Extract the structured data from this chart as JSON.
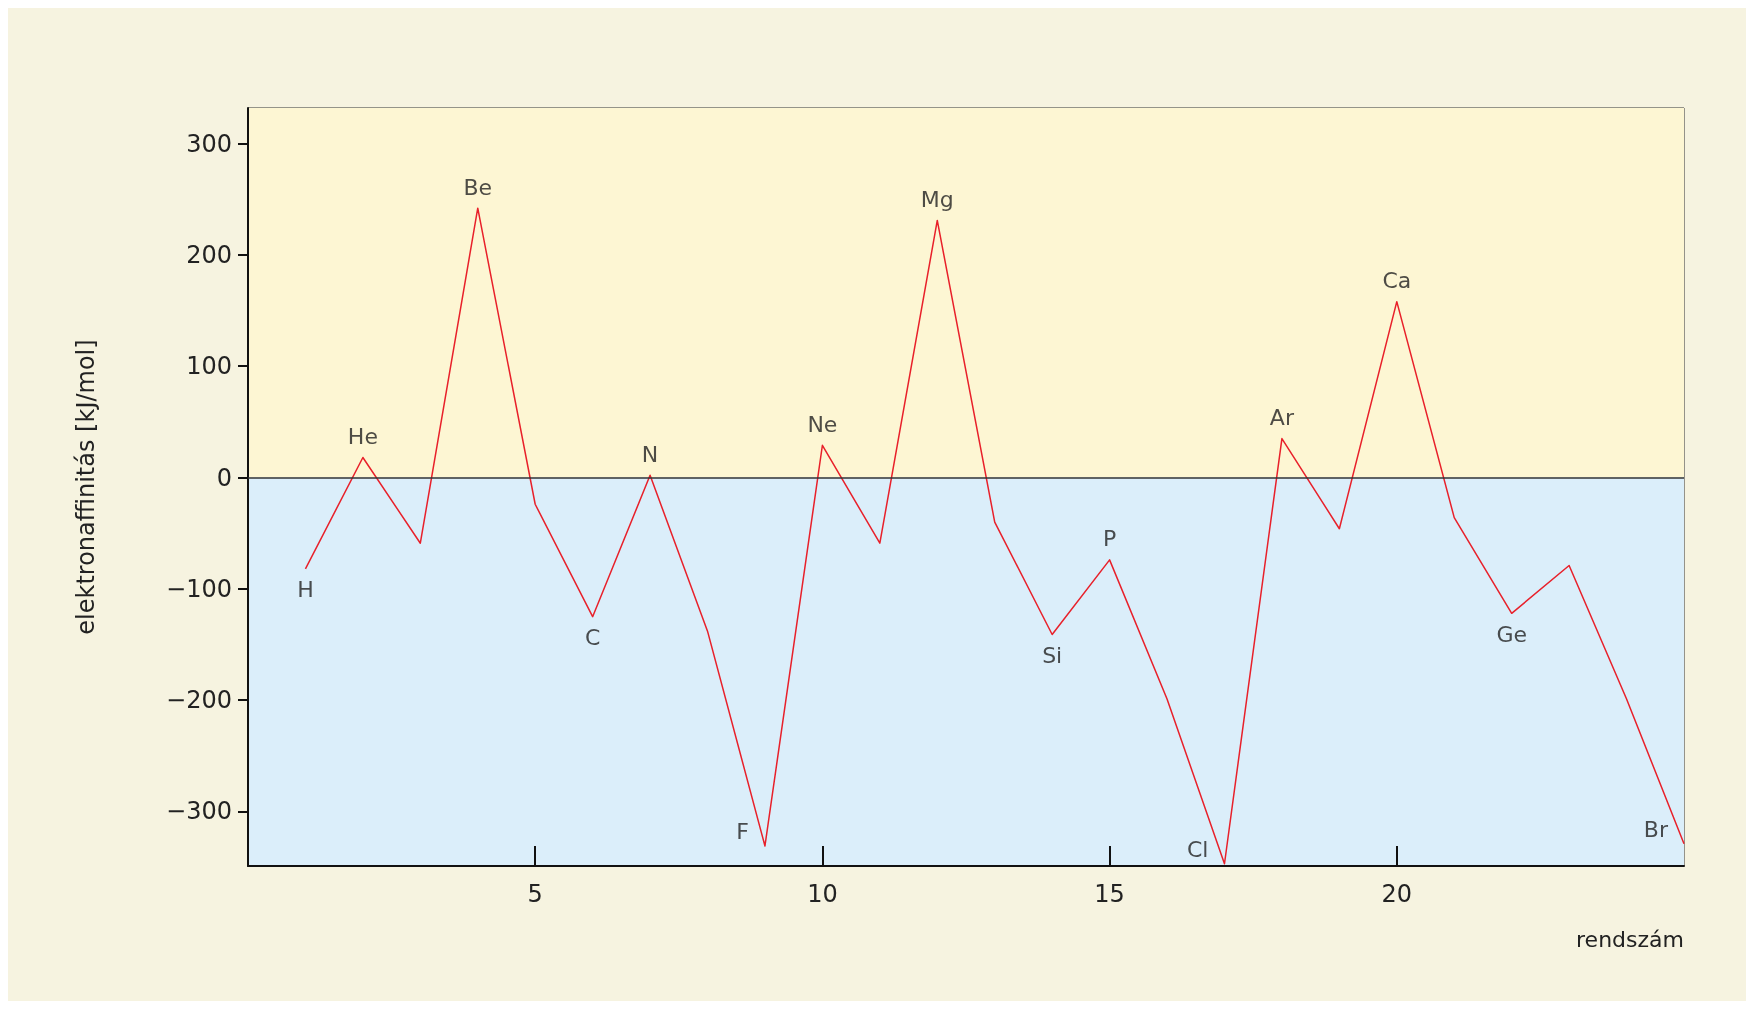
{
  "chart_data": {
    "type": "line",
    "xlabel": "rendszám",
    "ylabel": "elektronaffinitás [kJ/mol]",
    "x": [
      1,
      2,
      3,
      4,
      5,
      6,
      7,
      8,
      9,
      10,
      11,
      12,
      13,
      14,
      15,
      16,
      17,
      18,
      19,
      20,
      21,
      22,
      23,
      24,
      25
    ],
    "series": [
      {
        "color": "#e8202a",
        "values": [
          -82,
          18,
          -59,
          242,
          -24,
          -125,
          2,
          -138,
          -331,
          29,
          -59,
          231,
          -40,
          -141,
          -74,
          -199,
          -347,
          35,
          -46,
          158,
          -36,
          -122,
          -79,
          -199,
          -329
        ]
      }
    ],
    "xlim": [
      0,
      25
    ],
    "xticks": [
      5,
      10,
      15,
      20
    ],
    "ylim": [
      -349,
      332
    ],
    "yticks": [
      {
        "value": -300,
        "label": "−300"
      },
      {
        "value": -200,
        "label": "−200"
      },
      {
        "value": -100,
        "label": "−100"
      },
      0,
      100,
      200,
      300
    ],
    "bands": [
      {
        "axis": "y",
        "from": 0,
        "to": 332,
        "color": "#fdf6d3"
      },
      {
        "axis": "y",
        "from": -349,
        "to": 0,
        "color": "#dbeefa"
      }
    ],
    "annotations": [
      {
        "text": "H",
        "x": 1,
        "y": -82
      },
      {
        "text": "He",
        "x": 2,
        "y": 18
      },
      {
        "text": "Be",
        "x": 4,
        "y": 242
      },
      {
        "text": "C",
        "x": 6,
        "y": -125
      },
      {
        "text": "N",
        "x": 7,
        "y": 2
      },
      {
        "text": "F",
        "x": 9,
        "y": -331
      },
      {
        "text": "Ne",
        "x": 10,
        "y": 29
      },
      {
        "text": "Mg",
        "x": 12,
        "y": 231
      },
      {
        "text": "Si",
        "x": 14,
        "y": -141
      },
      {
        "text": "P",
        "x": 15,
        "y": -74
      },
      {
        "text": "Cl",
        "x": 17,
        "y": -347
      },
      {
        "text": "Ar",
        "x": 18,
        "y": 35
      },
      {
        "text": "Ca",
        "x": 20,
        "y": 158
      },
      {
        "text": "Ge",
        "x": 22,
        "y": -122
      },
      {
        "text": "Br",
        "x": 25,
        "y": -329
      }
    ],
    "ref_lines": [
      {
        "axis": "y",
        "value": 0,
        "color": "#333333"
      }
    ],
    "grid": false,
    "marker": "none",
    "line_style": "solid"
  }
}
